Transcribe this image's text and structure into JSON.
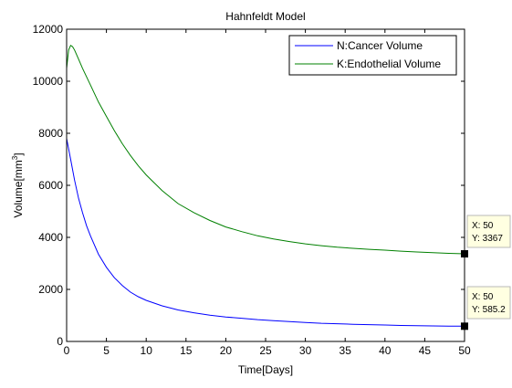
{
  "chart_data": {
    "type": "line",
    "title": "Hahnfeldt Model",
    "xlabel": "Time[Days]",
    "ylabel": "Volume[mm",
    "ylabel_sup": "3",
    "ylabel_end": "]",
    "xlim": [
      0,
      50
    ],
    "ylim": [
      0,
      12000
    ],
    "x_ticks": [
      0,
      5,
      10,
      15,
      20,
      25,
      30,
      35,
      40,
      45,
      50
    ],
    "y_ticks": [
      0,
      2000,
      4000,
      6000,
      8000,
      10000,
      12000
    ],
    "grid": false,
    "legend_position": "top-right",
    "series": [
      {
        "name": "N:Cancer Volume",
        "color": "#0000ff",
        "x": [
          0,
          0.5,
          1,
          1.5,
          2,
          2.5,
          3,
          4,
          5,
          6,
          7,
          8,
          9,
          10,
          12,
          14,
          16,
          18,
          20,
          22,
          24,
          26,
          28,
          30,
          32,
          34,
          36,
          38,
          40,
          42,
          44,
          46,
          48,
          50
        ],
        "y": [
          7800,
          7000,
          6200,
          5500,
          4950,
          4450,
          4050,
          3350,
          2850,
          2450,
          2150,
          1900,
          1720,
          1580,
          1370,
          1210,
          1100,
          1010,
          940,
          890,
          840,
          800,
          760,
          730,
          700,
          680,
          660,
          645,
          630,
          615,
          605,
          598,
          590,
          585.2
        ]
      },
      {
        "name": "K:Endothelial Volume",
        "color": "#008000",
        "x": [
          0,
          0.25,
          0.5,
          0.75,
          1,
          1.5,
          2,
          3,
          4,
          5,
          6,
          7,
          8,
          9,
          10,
          12,
          14,
          16,
          18,
          20,
          22,
          24,
          26,
          28,
          30,
          32,
          34,
          36,
          38,
          40,
          42,
          44,
          46,
          48,
          50
        ],
        "y": [
          10500,
          11200,
          11380,
          11330,
          11200,
          10850,
          10500,
          9850,
          9200,
          8650,
          8100,
          7600,
          7150,
          6750,
          6400,
          5800,
          5300,
          4950,
          4650,
          4400,
          4220,
          4060,
          3940,
          3840,
          3750,
          3680,
          3620,
          3580,
          3540,
          3510,
          3470,
          3440,
          3410,
          3385,
          3367
        ]
      }
    ],
    "annotations": [
      {
        "series": 1,
        "x": 50,
        "y": 3367,
        "label_x": "X: 50",
        "label_y": "Y: 3367"
      },
      {
        "series": 0,
        "x": 50,
        "y": 585.2,
        "label_x": "X: 50",
        "label_y": "Y: 585.2"
      }
    ]
  }
}
